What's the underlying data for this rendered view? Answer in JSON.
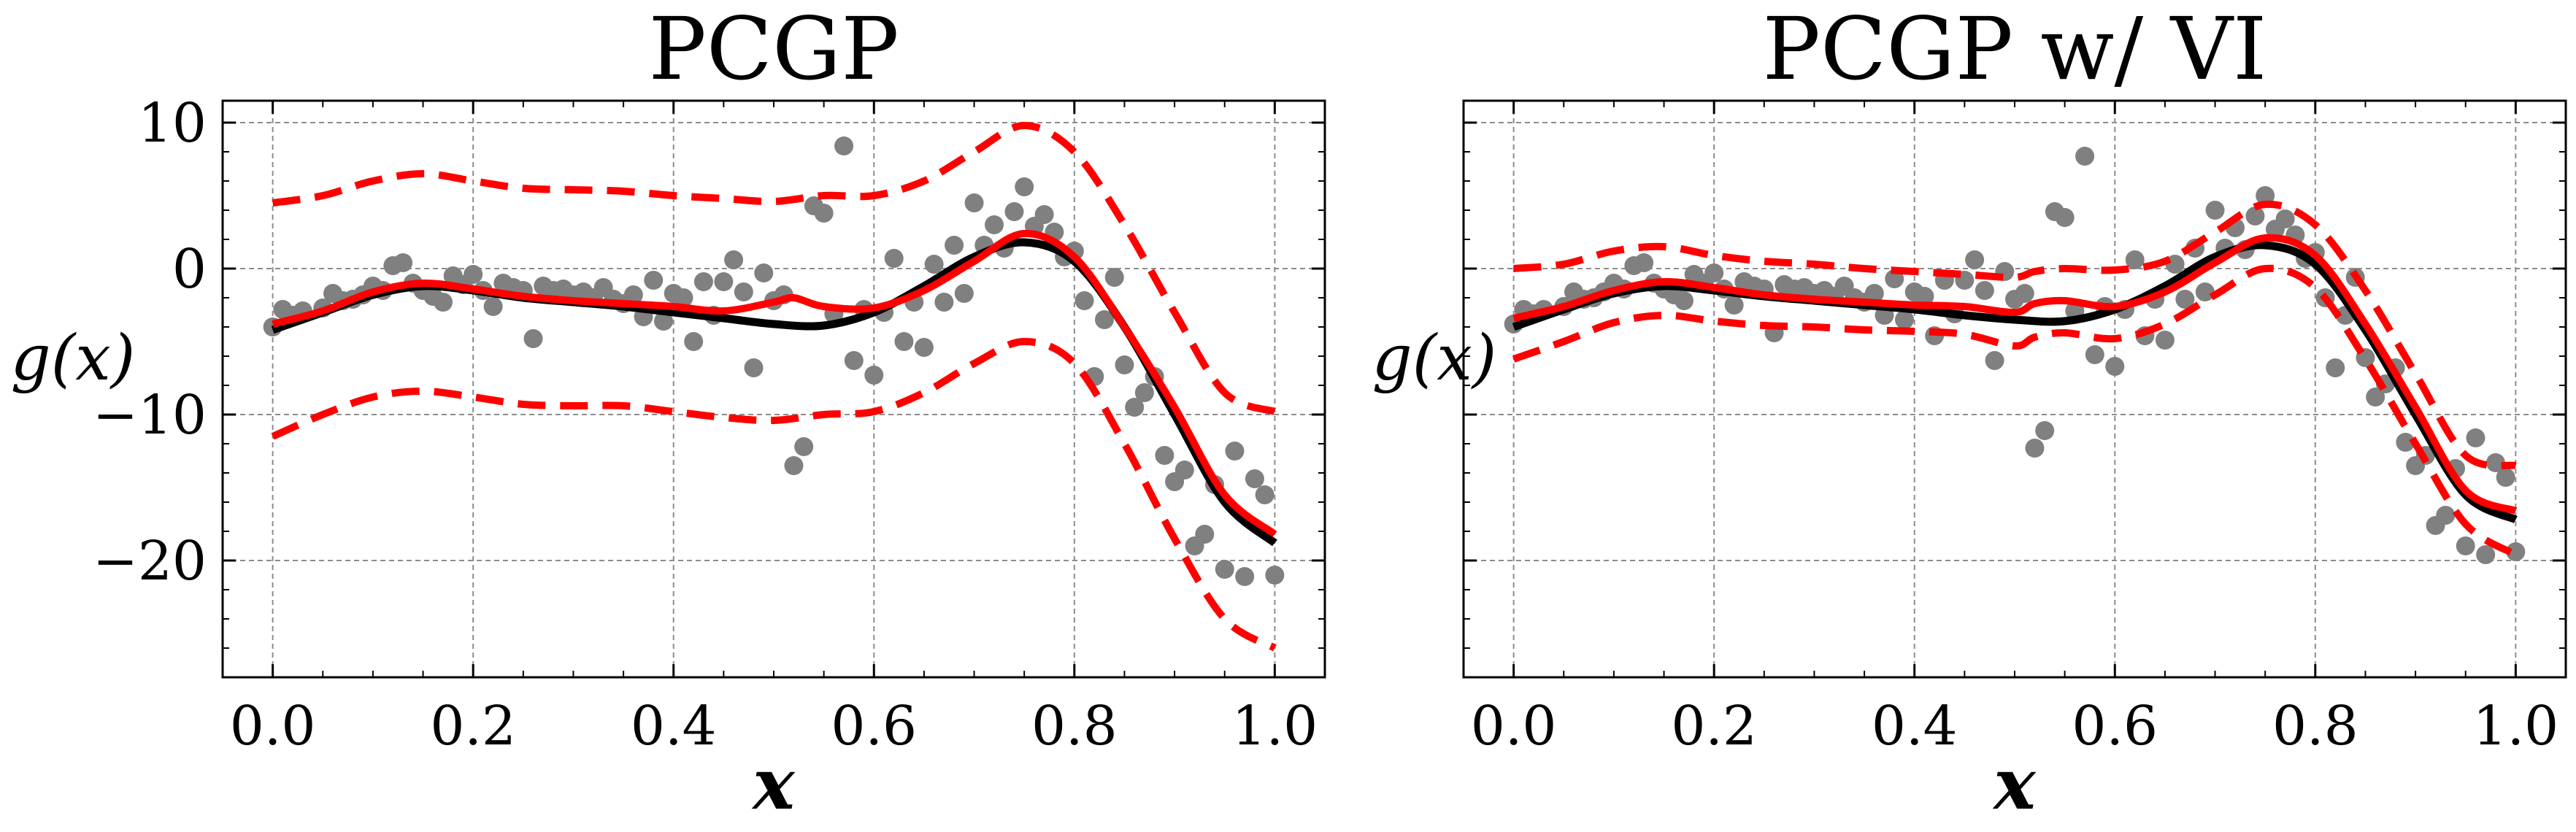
{
  "chart_data": [
    {
      "type": "line",
      "title": "PCGP",
      "xlabel": "x",
      "ylabel": "g(x)",
      "xlim": [
        -0.05,
        1.05
      ],
      "ylim": [
        -28,
        11.5
      ],
      "xticks": [
        "0.0",
        "0.2",
        "0.4",
        "0.6",
        "0.8",
        "1.0"
      ],
      "xtick_values": [
        0,
        0.2,
        0.4,
        0.6,
        0.8,
        1.0
      ],
      "yticks": [
        "10",
        "0",
        "−10",
        "−20"
      ],
      "ytick_values": [
        10,
        0,
        -10,
        -20
      ],
      "grid": true,
      "colors": {
        "truth": "#000000",
        "mean": "#ff0000",
        "bounds": "#ff0000",
        "points": "#808080"
      },
      "series": [
        {
          "style": "solid-black",
          "x": [
            0,
            0.05,
            0.1,
            0.15,
            0.2,
            0.25,
            0.3,
            0.35,
            0.4,
            0.45,
            0.5,
            0.55,
            0.6,
            0.65,
            0.7,
            0.75,
            0.8,
            0.85,
            0.9,
            0.95,
            1.0
          ],
          "y": [
            -4.2,
            -3.0,
            -1.8,
            -1.2,
            -1.5,
            -2.0,
            -2.3,
            -2.6,
            -3.0,
            -3.4,
            -3.8,
            -3.9,
            -3.0,
            -1.2,
            0.8,
            1.8,
            0.5,
            -4.0,
            -10.0,
            -16.0,
            -18.8
          ]
        },
        {
          "style": "solid-red",
          "x": [
            0,
            0.05,
            0.1,
            0.15,
            0.2,
            0.25,
            0.3,
            0.35,
            0.4,
            0.45,
            0.5,
            0.52,
            0.55,
            0.6,
            0.65,
            0.7,
            0.75,
            0.8,
            0.85,
            0.9,
            0.95,
            1.0
          ],
          "y": [
            -3.8,
            -2.9,
            -1.6,
            -1.0,
            -1.4,
            -1.9,
            -2.2,
            -2.4,
            -2.6,
            -2.9,
            -2.3,
            -2.0,
            -2.6,
            -2.7,
            -1.5,
            0.5,
            2.4,
            0.8,
            -4.0,
            -9.5,
            -15.5,
            -18.2
          ]
        },
        {
          "style": "dashed-red",
          "x": [
            0,
            0.05,
            0.1,
            0.15,
            0.2,
            0.25,
            0.3,
            0.35,
            0.4,
            0.45,
            0.5,
            0.55,
            0.6,
            0.65,
            0.7,
            0.75,
            0.8,
            0.85,
            0.9,
            0.95,
            1.0
          ],
          "y": [
            4.5,
            5.0,
            6.0,
            6.5,
            6.0,
            5.5,
            5.4,
            5.3,
            5.0,
            4.8,
            4.6,
            5.0,
            5.0,
            6.0,
            8.0,
            9.8,
            8.0,
            3.0,
            -3.0,
            -8.5,
            -9.8
          ]
        },
        {
          "style": "dashed-red",
          "x": [
            0,
            0.05,
            0.1,
            0.15,
            0.2,
            0.25,
            0.3,
            0.35,
            0.4,
            0.45,
            0.5,
            0.55,
            0.6,
            0.65,
            0.7,
            0.75,
            0.8,
            0.85,
            0.9,
            0.95,
            1.0
          ],
          "y": [
            -11.5,
            -10.0,
            -8.8,
            -8.4,
            -8.8,
            -9.3,
            -9.4,
            -9.4,
            -9.8,
            -10.2,
            -10.4,
            -10.0,
            -9.8,
            -8.5,
            -6.5,
            -5.0,
            -6.5,
            -12.0,
            -18.5,
            -24.0,
            -26.0
          ]
        },
        {
          "style": "scatter",
          "x": [
            0,
            0.01,
            0.02,
            0.03,
            0.05,
            0.06,
            0.07,
            0.08,
            0.09,
            0.1,
            0.11,
            0.12,
            0.13,
            0.14,
            0.15,
            0.16,
            0.17,
            0.18,
            0.19,
            0.2,
            0.21,
            0.22,
            0.23,
            0.24,
            0.25,
            0.26,
            0.27,
            0.28,
            0.29,
            0.3,
            0.31,
            0.32,
            0.33,
            0.34,
            0.35,
            0.36,
            0.37,
            0.38,
            0.39,
            0.4,
            0.41,
            0.42,
            0.43,
            0.44,
            0.45,
            0.46,
            0.47,
            0.48,
            0.49,
            0.5,
            0.51,
            0.52,
            0.53,
            0.54,
            0.55,
            0.56,
            0.57,
            0.58,
            0.59,
            0.6,
            0.61,
            0.62,
            0.63,
            0.64,
            0.65,
            0.66,
            0.67,
            0.68,
            0.69,
            0.7,
            0.71,
            0.72,
            0.73,
            0.74,
            0.75,
            0.76,
            0.77,
            0.78,
            0.79,
            0.8,
            0.81,
            0.82,
            0.83,
            0.84,
            0.85,
            0.86,
            0.87,
            0.88,
            0.89,
            0.9,
            0.91,
            0.92,
            0.93,
            0.94,
            0.95,
            0.96,
            0.97,
            0.98,
            0.99,
            1.0
          ],
          "y": [
            -4.0,
            -2.8,
            -3.2,
            -2.9,
            -2.7,
            -1.7,
            -2.2,
            -2.1,
            -1.8,
            -1.2,
            -1.5,
            0.2,
            0.4,
            -1.0,
            -1.5,
            -1.9,
            -2.3,
            -0.5,
            -1.1,
            -0.4,
            -1.5,
            -2.6,
            -1.0,
            -1.3,
            -1.5,
            -4.8,
            -1.2,
            -1.5,
            -1.4,
            -1.8,
            -1.6,
            -2.0,
            -1.3,
            -2.1,
            -2.4,
            -1.8,
            -3.3,
            -0.8,
            -3.6,
            -1.7,
            -2.0,
            -5.0,
            -0.9,
            -3.2,
            -0.9,
            0.6,
            -1.6,
            -6.8,
            -0.3,
            -2.2,
            -1.8,
            -13.5,
            -12.2,
            4.3,
            3.8,
            -3.1,
            8.4,
            -6.3,
            -2.8,
            -7.3,
            -3.0,
            0.7,
            -5.0,
            -2.3,
            -5.4,
            0.3,
            -2.3,
            1.6,
            -1.7,
            4.5,
            1.6,
            3.0,
            1.4,
            3.9,
            5.6,
            2.9,
            3.7,
            2.5,
            0.8,
            1.2,
            -2.2,
            -7.4,
            -3.5,
            -0.6,
            -6.6,
            -9.5,
            -8.5,
            -7.4,
            -12.8,
            -14.6,
            -13.8,
            -19.0,
            -18.2,
            -14.8,
            -20.6,
            -12.5,
            -21.1,
            -14.4,
            -15.5,
            -21.0
          ]
        }
      ]
    },
    {
      "type": "line",
      "title": "PCGP w/ VI",
      "xlabel": "x",
      "ylabel": "g(x)",
      "xlim": [
        -0.05,
        1.05
      ],
      "ylim": [
        -28,
        11.5
      ],
      "xticks": [
        "0.0",
        "0.2",
        "0.4",
        "0.6",
        "0.8",
        "1.0"
      ],
      "xtick_values": [
        0,
        0.2,
        0.4,
        0.6,
        0.8,
        1.0
      ],
      "yticks": [],
      "ytick_values": [
        10,
        0,
        -10,
        -20
      ],
      "grid": true,
      "colors": {
        "truth": "#000000",
        "mean": "#ff0000",
        "bounds": "#ff0000",
        "points": "#808080"
      },
      "series": [
        {
          "style": "solid-black",
          "x": [
            0,
            0.05,
            0.1,
            0.15,
            0.2,
            0.25,
            0.3,
            0.35,
            0.4,
            0.45,
            0.5,
            0.55,
            0.6,
            0.65,
            0.7,
            0.75,
            0.8,
            0.85,
            0.9,
            0.95,
            1.0
          ],
          "y": [
            -4.0,
            -2.8,
            -1.7,
            -1.2,
            -1.5,
            -1.9,
            -2.2,
            -2.5,
            -2.8,
            -3.2,
            -3.5,
            -3.6,
            -2.8,
            -1.2,
            0.8,
            1.6,
            0.3,
            -4.2,
            -10.0,
            -15.5,
            -17.2
          ]
        },
        {
          "style": "solid-red",
          "x": [
            0,
            0.05,
            0.1,
            0.15,
            0.2,
            0.25,
            0.3,
            0.35,
            0.4,
            0.45,
            0.5,
            0.52,
            0.55,
            0.6,
            0.65,
            0.7,
            0.75,
            0.8,
            0.85,
            0.9,
            0.95,
            1.0
          ],
          "y": [
            -3.4,
            -2.6,
            -1.5,
            -0.9,
            -1.3,
            -1.8,
            -2.1,
            -2.3,
            -2.5,
            -2.6,
            -3.0,
            -2.4,
            -2.2,
            -2.6,
            -1.6,
            0.4,
            2.1,
            0.9,
            -3.8,
            -9.5,
            -15.2,
            -16.6
          ]
        },
        {
          "style": "dashed-red",
          "x": [
            0,
            0.05,
            0.1,
            0.15,
            0.2,
            0.25,
            0.3,
            0.35,
            0.4,
            0.45,
            0.5,
            0.52,
            0.55,
            0.6,
            0.65,
            0.7,
            0.75,
            0.8,
            0.85,
            0.9,
            0.95,
            1.0
          ],
          "y": [
            0.0,
            0.3,
            1.2,
            1.5,
            0.9,
            0.5,
            0.3,
            0.0,
            -0.2,
            -0.4,
            -0.6,
            -0.2,
            0.0,
            -0.1,
            0.5,
            2.5,
            4.4,
            3.0,
            -1.5,
            -7.2,
            -12.8,
            -13.5
          ]
        },
        {
          "style": "dashed-red",
          "x": [
            0,
            0.05,
            0.1,
            0.15,
            0.2,
            0.25,
            0.3,
            0.35,
            0.4,
            0.45,
            0.5,
            0.52,
            0.55,
            0.6,
            0.65,
            0.7,
            0.75,
            0.8,
            0.85,
            0.9,
            0.95,
            1.0
          ],
          "y": [
            -6.2,
            -5.0,
            -3.7,
            -3.2,
            -3.6,
            -3.9,
            -4.0,
            -4.2,
            -4.3,
            -4.5,
            -5.3,
            -4.7,
            -4.4,
            -4.8,
            -3.8,
            -1.8,
            0.0,
            -1.3,
            -6.2,
            -12.0,
            -17.5,
            -19.6
          ]
        },
        {
          "style": "scatter",
          "x": [
            0,
            0.01,
            0.02,
            0.03,
            0.05,
            0.06,
            0.07,
            0.08,
            0.09,
            0.1,
            0.11,
            0.12,
            0.13,
            0.14,
            0.15,
            0.16,
            0.17,
            0.18,
            0.19,
            0.2,
            0.21,
            0.22,
            0.23,
            0.24,
            0.25,
            0.26,
            0.27,
            0.28,
            0.29,
            0.3,
            0.31,
            0.32,
            0.33,
            0.34,
            0.35,
            0.36,
            0.37,
            0.38,
            0.39,
            0.4,
            0.41,
            0.42,
            0.43,
            0.44,
            0.45,
            0.46,
            0.47,
            0.48,
            0.49,
            0.5,
            0.51,
            0.52,
            0.53,
            0.54,
            0.55,
            0.56,
            0.57,
            0.58,
            0.59,
            0.6,
            0.61,
            0.62,
            0.63,
            0.64,
            0.65,
            0.66,
            0.67,
            0.68,
            0.69,
            0.7,
            0.71,
            0.72,
            0.73,
            0.74,
            0.75,
            0.76,
            0.77,
            0.78,
            0.79,
            0.8,
            0.81,
            0.82,
            0.83,
            0.84,
            0.85,
            0.86,
            0.87,
            0.88,
            0.89,
            0.9,
            0.91,
            0.92,
            0.93,
            0.94,
            0.95,
            0.96,
            0.97,
            0.98,
            0.99,
            1.0
          ],
          "y": [
            -3.8,
            -2.8,
            -3.1,
            -2.8,
            -2.6,
            -1.6,
            -2.1,
            -2.0,
            -1.6,
            -1.0,
            -1.4,
            0.2,
            0.4,
            -1.0,
            -1.4,
            -1.8,
            -2.2,
            -0.4,
            -1.0,
            -0.3,
            -1.4,
            -2.5,
            -0.9,
            -1.2,
            -1.4,
            -4.4,
            -1.1,
            -1.4,
            -1.3,
            -1.7,
            -1.5,
            -1.9,
            -1.2,
            -2.0,
            -2.3,
            -1.7,
            -3.2,
            -0.7,
            -3.5,
            -1.6,
            -1.9,
            -4.6,
            -0.8,
            -3.1,
            -0.8,
            0.6,
            -1.5,
            -6.3,
            -0.2,
            -2.1,
            -1.7,
            -12.3,
            -11.1,
            3.9,
            3.5,
            -2.9,
            7.7,
            -5.9,
            -2.6,
            -6.7,
            -2.8,
            0.6,
            -4.6,
            -2.1,
            -4.9,
            0.3,
            -2.1,
            1.4,
            -1.6,
            4.0,
            1.4,
            2.8,
            1.3,
            3.6,
            5.0,
            2.7,
            3.4,
            2.3,
            0.7,
            1.1,
            -2.0,
            -6.8,
            -3.2,
            -0.6,
            -6.1,
            -8.8,
            -7.9,
            -6.8,
            -11.9,
            -13.5,
            -12.8,
            -17.6,
            -16.9,
            -13.7,
            -19.0,
            -11.6,
            -19.6,
            -13.3,
            -14.3,
            -19.4
          ]
        }
      ]
    }
  ]
}
